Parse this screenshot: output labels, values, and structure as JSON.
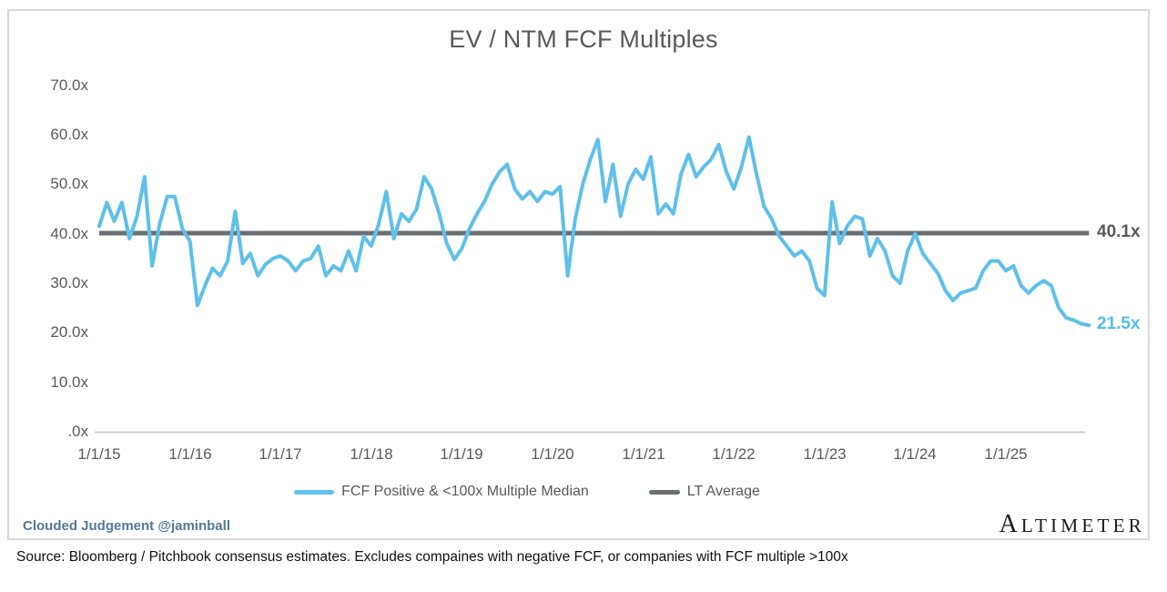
{
  "title": "EV / NTM FCF Multiples",
  "value_labels": {
    "lt_average": "40.1x",
    "latest": "21.5x"
  },
  "legend": {
    "series1_label": "FCF Positive & <100x Multiple Median",
    "series2_label": "LT Average"
  },
  "footer": {
    "byline": "Clouded Judgement @jaminball",
    "logo_first_letter": "A",
    "logo_rest": "LTIMETER",
    "source": "Source: Bloomberg / Pitchbook consensus estimates. Excludes compaines with negative FCF, or companies with FCF multiple >100x"
  },
  "colors": {
    "series_blue": "#5FC0EA",
    "lt_average_gray": "#6A6F74",
    "text_gray": "#595959",
    "axis_line_gray": "#BFBFBF",
    "border_gray": "#D9D9D9",
    "byline_blue": "#54789B"
  },
  "chart_data": {
    "type": "line",
    "title": "EV / NTM FCF Multiples",
    "xlabel": "",
    "ylabel": "",
    "ylim": [
      0,
      70
    ],
    "grid": false,
    "legend_position": "bottom",
    "x_tick_labels": [
      "1/1/15",
      "1/1/16",
      "1/1/17",
      "1/1/18",
      "1/1/19",
      "1/1/20",
      "1/1/21",
      "1/1/22",
      "1/1/23",
      "1/1/24",
      "1/1/25"
    ],
    "y_ticks": [
      {
        "label": "70.0x",
        "value": 70
      },
      {
        "label": "60.0x",
        "value": 60
      },
      {
        "label": "50.0x",
        "value": 50
      },
      {
        "label": "40.0x",
        "value": 40
      },
      {
        "label": "30.0x",
        "value": 30
      },
      {
        "label": "20.0x",
        "value": 20
      },
      {
        "label": "10.0x",
        "value": 10
      },
      {
        "label": ".0x",
        "value": 0
      }
    ],
    "series": [
      {
        "name": "FCF Positive & <100x Multiple Median",
        "color": "#5FC0EA",
        "sampling": "monthly_from_2015-01",
        "values": [
          41.5,
          46.3,
          42.5,
          46.3,
          39.0,
          43.5,
          51.5,
          33.5,
          42.0,
          47.5,
          47.5,
          41.0,
          38.5,
          25.5,
          29.5,
          33.0,
          31.5,
          34.5,
          44.5,
          34.0,
          36.0,
          31.5,
          33.8,
          35.0,
          35.5,
          34.5,
          32.5,
          34.5,
          35.0,
          37.5,
          31.5,
          33.5,
          32.5,
          36.5,
          32.5,
          39.5,
          37.5,
          42.0,
          48.5,
          39.0,
          44.0,
          42.5,
          45.0,
          51.5,
          49.0,
          44.0,
          38.0,
          34.8,
          37.0,
          41.0,
          44.0,
          46.5,
          50.0,
          52.5,
          54.0,
          49.0,
          47.0,
          48.5,
          46.5,
          48.5,
          48.0,
          49.5,
          31.5,
          43.0,
          50.0,
          55.0,
          59.0,
          46.5,
          54.0,
          43.5,
          50.0,
          53.0,
          51.0,
          55.5,
          44.0,
          46.0,
          44.0,
          52.0,
          56.0,
          51.5,
          53.5,
          55.0,
          58.0,
          52.5,
          49.0,
          53.5,
          59.5,
          52.0,
          45.5,
          43.0,
          39.5,
          37.5,
          35.5,
          36.5,
          34.5,
          29.0,
          27.5,
          46.4,
          38.0,
          41.5,
          43.5,
          43.0,
          35.5,
          39.0,
          36.5,
          31.5,
          30.0,
          36.5,
          40.0,
          36.0,
          34.0,
          32.0,
          28.5,
          26.5,
          28.0,
          28.5,
          29.0,
          32.5,
          34.5,
          34.5,
          32.5,
          33.5,
          29.5,
          28.0,
          29.5,
          30.5,
          29.5,
          25.0,
          23.0,
          22.5,
          21.8,
          21.5
        ],
        "end_value": 21.5
      },
      {
        "name": "LT Average",
        "color": "#6A6F74",
        "constant_value": 40.1
      }
    ]
  }
}
